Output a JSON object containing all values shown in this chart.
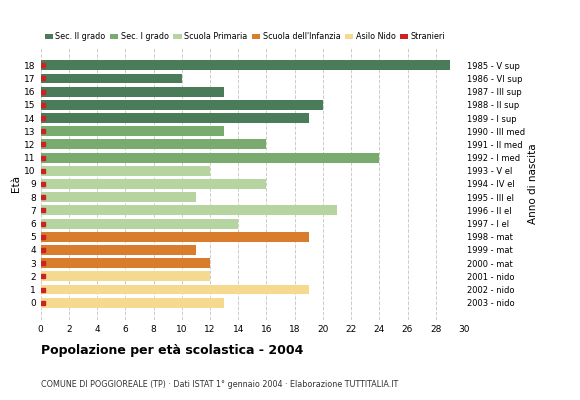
{
  "ages": [
    18,
    17,
    16,
    15,
    14,
    13,
    12,
    11,
    10,
    9,
    8,
    7,
    6,
    5,
    4,
    3,
    2,
    1,
    0
  ],
  "anno_nascita": [
    "1985 - V sup",
    "1986 - VI sup",
    "1987 - III sup",
    "1988 - II sup",
    "1989 - I sup",
    "1990 - III med",
    "1991 - II med",
    "1992 - I med",
    "1993 - V el",
    "1994 - IV el",
    "1995 - III el",
    "1996 - II el",
    "1997 - I el",
    "1998 - mat",
    "1999 - mat",
    "2000 - mat",
    "2001 - nido",
    "2002 - nido",
    "2003 - nido"
  ],
  "values": [
    29,
    10,
    13,
    20,
    19,
    13,
    16,
    24,
    12,
    16,
    11,
    21,
    14,
    19,
    11,
    12,
    12,
    19,
    13
  ],
  "bar_colors": [
    "#4a7c59",
    "#4a7c59",
    "#4a7c59",
    "#4a7c59",
    "#4a7c59",
    "#7aab6e",
    "#7aab6e",
    "#7aab6e",
    "#b5d4a0",
    "#b5d4a0",
    "#b5d4a0",
    "#b5d4a0",
    "#b5d4a0",
    "#d97c2b",
    "#d97c2b",
    "#d97c2b",
    "#f5d98e",
    "#f5d98e",
    "#f5d98e"
  ],
  "stranieri_color": "#cc2222",
  "legend_labels": [
    "Sec. II grado",
    "Sec. I grado",
    "Scuola Primaria",
    "Scuola dell'Infanzia",
    "Asilo Nido",
    "Stranieri"
  ],
  "legend_colors": [
    "#4a7c59",
    "#7aab6e",
    "#b5d4a0",
    "#d97c2b",
    "#f5d98e",
    "#cc2222"
  ],
  "title": "Popolazione per età scolastica - 2004",
  "subtitle": "COMUNE DI POGGIOREALE (TP) · Dati ISTAT 1° gennaio 2004 · Elaborazione TUTTITALIA.IT",
  "xlabel_eta": "Età",
  "xlabel_anno": "Anno di nascita",
  "xlim": [
    0,
    30
  ],
  "xticks": [
    0,
    2,
    4,
    6,
    8,
    10,
    12,
    14,
    16,
    18,
    20,
    22,
    24,
    26,
    28,
    30
  ],
  "background_color": "#ffffff",
  "grid_color": "#cccccc",
  "bar_height": 0.75,
  "stranieri_size": 3.5
}
